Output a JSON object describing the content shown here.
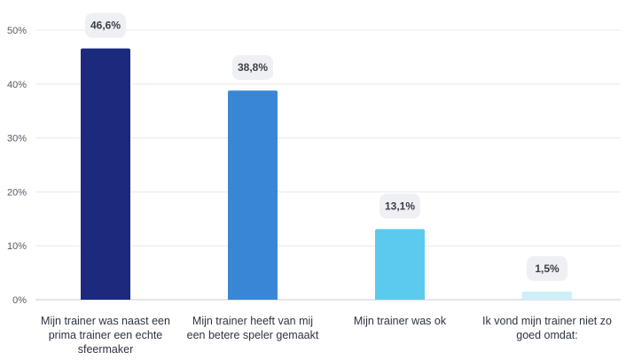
{
  "chart_data": {
    "type": "bar",
    "title": "",
    "xlabel": "",
    "ylabel": "",
    "ylim": [
      0,
      50
    ],
    "yticks": [
      0,
      10,
      20,
      30,
      40,
      50
    ],
    "ytick_labels": [
      "0%",
      "10%",
      "20%",
      "30%",
      "40%",
      "50%"
    ],
    "grid": true,
    "categories": [
      [
        "Mijn trainer was naast een",
        "prima trainer een echte",
        "sfeermaker"
      ],
      [
        "Mijn trainer heeft van mij",
        "een betere speler gemaakt"
      ],
      [
        "Mijn trainer was ok"
      ],
      [
        "Ik vond mijn trainer niet zo",
        "goed omdat:"
      ]
    ],
    "values": [
      46.6,
      38.8,
      13.1,
      1.5
    ],
    "value_labels": [
      "46,6%",
      "38,8%",
      "13,1%",
      "1,5%"
    ],
    "colors": [
      "#1c2a7e",
      "#3a86d6",
      "#5ccaee",
      "#cdeffa"
    ]
  }
}
